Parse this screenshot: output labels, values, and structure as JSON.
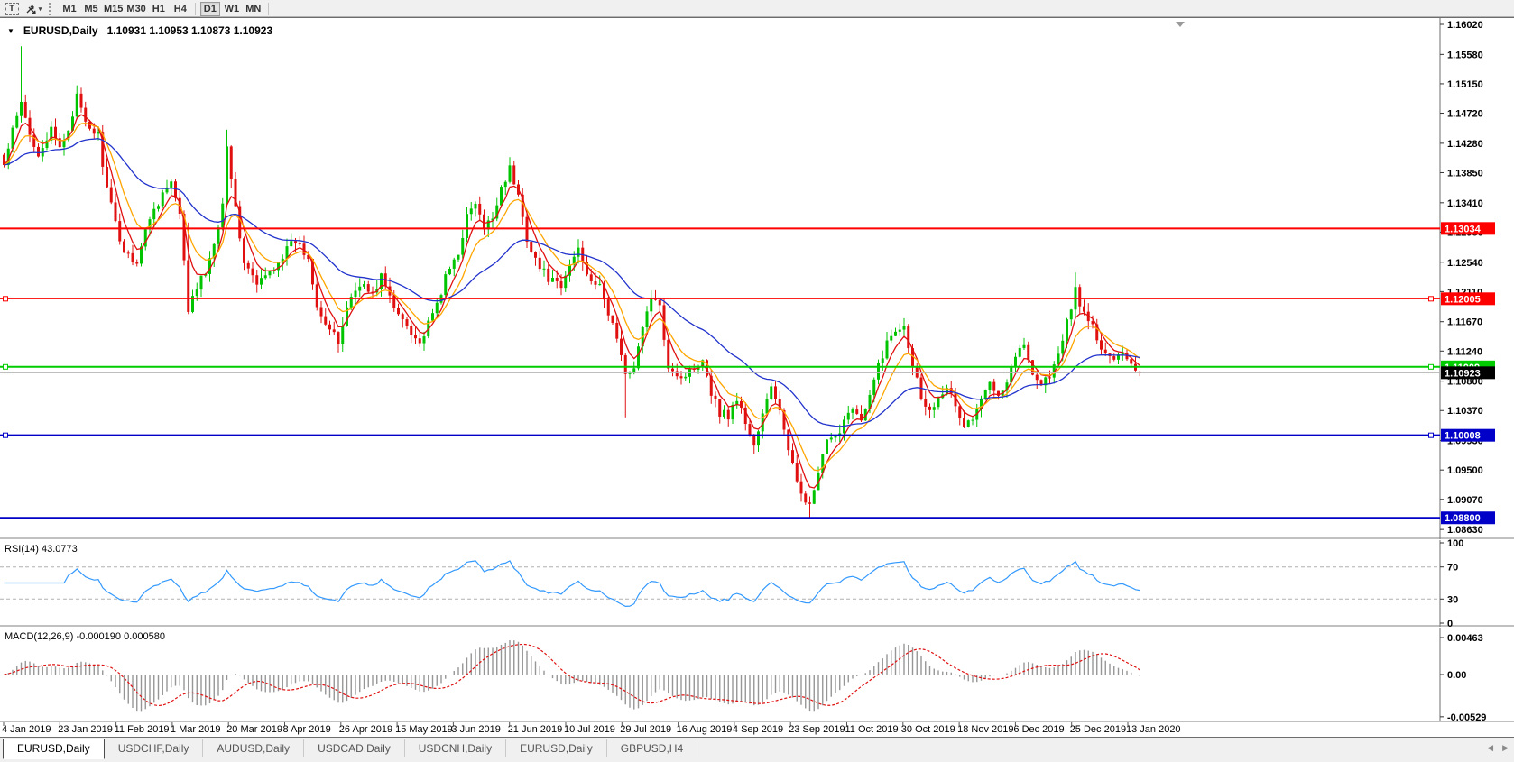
{
  "toolbar": {
    "text_tool_label": "T",
    "arrows_tool": "arrows-dropdown",
    "timeframes": [
      "M1",
      "M5",
      "M15",
      "M30",
      "H1",
      "H4",
      "D1",
      "W1",
      "MN"
    ],
    "active_timeframe": "D1"
  },
  "header": {
    "dropdown_glyph": "▼",
    "symbol": "EURUSD,Daily",
    "quotes": "1.10931 1.10953 1.10873 1.10923"
  },
  "chart_data": {
    "type": "candlestick",
    "symbol": "EURUSD",
    "timeframe": "Daily",
    "title": "EURUSD,Daily",
    "last_bar": {
      "open": 1.10931,
      "high": 1.10953,
      "low": 1.10873,
      "close": 1.10923
    },
    "bars_total": 266,
    "ylim": [
      1.08513,
      1.16099
    ],
    "price_ticks": [
      "1.16020",
      "1.15580",
      "1.15150",
      "1.14720",
      "1.14280",
      "1.13850",
      "1.13410",
      "1.12980",
      "1.12540",
      "1.12110",
      "1.11670",
      "1.11240",
      "1.10800",
      "1.10370",
      "1.09930",
      "1.09500",
      "1.09070",
      "1.08630"
    ],
    "price_anchors": [
      [
        0,
        1.1395
      ],
      [
        2,
        1.1445
      ],
      [
        4,
        1.1485
      ],
      [
        6,
        1.144
      ],
      [
        8,
        1.1415
      ],
      [
        11,
        1.1445
      ],
      [
        13,
        1.142
      ],
      [
        15,
        1.145
      ],
      [
        17,
        1.1495
      ],
      [
        19,
        1.1455
      ],
      [
        22,
        1.144
      ],
      [
        24,
        1.136
      ],
      [
        26,
        1.131
      ],
      [
        28,
        1.127
      ],
      [
        31,
        1.1255
      ],
      [
        34,
        1.132
      ],
      [
        37,
        1.1355
      ],
      [
        39,
        1.137
      ],
      [
        41,
        1.132
      ],
      [
        43,
        1.1185
      ],
      [
        45,
        1.1215
      ],
      [
        48,
        1.1255
      ],
      [
        51,
        1.134
      ],
      [
        52,
        1.143
      ],
      [
        54,
        1.133
      ],
      [
        56,
        1.1255
      ],
      [
        59,
        1.122
      ],
      [
        62,
        1.124
      ],
      [
        65,
        1.1265
      ],
      [
        68,
        1.1285
      ],
      [
        71,
        1.126
      ],
      [
        73,
        1.1195
      ],
      [
        75,
        1.1165
      ],
      [
        78,
        1.1135
      ],
      [
        80,
        1.119
      ],
      [
        83,
        1.1225
      ],
      [
        86,
        1.1205
      ],
      [
        88,
        1.1235
      ],
      [
        91,
        1.1185
      ],
      [
        94,
        1.1165
      ],
      [
        97,
        1.1135
      ],
      [
        100,
        1.1175
      ],
      [
        103,
        1.123
      ],
      [
        106,
        1.127
      ],
      [
        108,
        1.132
      ],
      [
        110,
        1.134
      ],
      [
        112,
        1.13
      ],
      [
        114,
        1.132
      ],
      [
        116,
        1.1365
      ],
      [
        118,
        1.139
      ],
      [
        120,
        1.135
      ],
      [
        122,
        1.129
      ],
      [
        125,
        1.1245
      ],
      [
        128,
        1.1225
      ],
      [
        130,
        1.1215
      ],
      [
        132,
        1.125
      ],
      [
        134,
        1.1275
      ],
      [
        136,
        1.124
      ],
      [
        139,
        1.1215
      ],
      [
        141,
        1.118
      ],
      [
        143,
        1.1145
      ],
      [
        145,
        1.1085
      ],
      [
        147,
        1.1105
      ],
      [
        149,
        1.1155
      ],
      [
        151,
        1.1205
      ],
      [
        153,
        1.1185
      ],
      [
        155,
        1.1105
      ],
      [
        158,
        1.1085
      ],
      [
        161,
        1.11
      ],
      [
        163,
        1.1115
      ],
      [
        165,
        1.1065
      ],
      [
        167,
        1.1035
      ],
      [
        169,
        1.103
      ],
      [
        171,
        1.1055
      ],
      [
        173,
        1.102
      ],
      [
        175,
        1.0985
      ],
      [
        177,
        1.103
      ],
      [
        179,
        1.107
      ],
      [
        181,
        1.104
      ],
      [
        183,
        1.0975
      ],
      [
        185,
        1.0935
      ],
      [
        188,
        1.0895
      ],
      [
        190,
        1.0945
      ],
      [
        192,
        1.099
      ],
      [
        194,
        1.0995
      ],
      [
        196,
        1.1025
      ],
      [
        198,
        1.1045
      ],
      [
        200,
        1.102
      ],
      [
        202,
        1.1055
      ],
      [
        204,
        1.1105
      ],
      [
        206,
        1.1135
      ],
      [
        208,
        1.1155
      ],
      [
        210,
        1.1165
      ],
      [
        212,
        1.1105
      ],
      [
        214,
        1.106
      ],
      [
        216,
        1.1035
      ],
      [
        218,
        1.106
      ],
      [
        220,
        1.1075
      ],
      [
        222,
        1.104
      ],
      [
        224,
        1.1015
      ],
      [
        226,
        1.1025
      ],
      [
        228,
        1.105
      ],
      [
        230,
        1.108
      ],
      [
        232,
        1.1065
      ],
      [
        234,
        1.108
      ],
      [
        236,
        1.112
      ],
      [
        238,
        1.113
      ],
      [
        240,
        1.1095
      ],
      [
        242,
        1.1075
      ],
      [
        244,
        1.109
      ],
      [
        246,
        1.1115
      ],
      [
        248,
        1.1165
      ],
      [
        250,
        1.1215
      ],
      [
        252,
        1.1175
      ],
      [
        254,
        1.116
      ],
      [
        256,
        1.1125
      ],
      [
        258,
        1.111
      ],
      [
        260,
        1.1125
      ],
      [
        262,
        1.1115
      ],
      [
        265,
        1.10923
      ]
    ],
    "spikes": [
      {
        "i": 4,
        "high": 1.157
      },
      {
        "i": 43,
        "high": 1.1312
      },
      {
        "i": 52,
        "high": 1.1448
      },
      {
        "i": 145,
        "low": 1.1027
      },
      {
        "i": 188,
        "low": 1.0879
      },
      {
        "i": 250,
        "high": 1.1239
      }
    ],
    "candle_up_color": "#00C400",
    "candle_down_color": "#E01010",
    "overlays": [
      {
        "type": "ema",
        "period": 5,
        "color": "#E01010"
      },
      {
        "type": "ema",
        "period": 10,
        "color": "#FFA500"
      },
      {
        "type": "ema",
        "period": 34,
        "color": "#2233CC"
      }
    ],
    "hlines": [
      {
        "price": 1.13034,
        "label": "1.13034",
        "color": "#FF0000",
        "width": 2,
        "handles": []
      },
      {
        "price": 1.12005,
        "label": "1.12005",
        "color": "#FF0000",
        "width": 1,
        "handles": [
          "left",
          "right"
        ]
      },
      {
        "price": 1.11009,
        "label": "1.11009",
        "color": "#00CC00",
        "width": 2,
        "handles": [
          "left",
          "right"
        ]
      },
      {
        "price": 1.10008,
        "label": "1.10008",
        "color": "#0000C8",
        "width": 2,
        "handles": [
          "left",
          "right"
        ]
      },
      {
        "price": 1.088,
        "label": "1.08800",
        "color": "#0000C8",
        "width": 2,
        "handles": []
      }
    ],
    "current_price": {
      "value": 1.10923,
      "label": "1.10923",
      "line_color": "#b4b4b4",
      "label_bg": "#000000"
    },
    "rsi": {
      "period": 14,
      "label": "RSI(14) 43.0773",
      "last": 43.0773,
      "levels": [
        70,
        30
      ],
      "axis_ticks": [
        100,
        70,
        30,
        0
      ],
      "color": "#3399FF"
    },
    "macd": {
      "fast": 12,
      "slow": 26,
      "signal": 9,
      "label": "MACD(12,26,9) -0.000190 0.000580",
      "last_macd": -0.00019,
      "last_signal": 0.00058,
      "axis_ticks": [
        {
          "v": 0.00463,
          "t": "0.00463"
        },
        {
          "v": 0,
          "t": "0.00"
        },
        {
          "v": -0.00529,
          "t": "-0.00529"
        }
      ],
      "hist_color": "#969696",
      "signal_color": "#E01010"
    },
    "dates": [
      "4 Jan 2019",
      "23 Jan 2019",
      "11 Feb 2019",
      "1 Mar 2019",
      "20 Mar 2019",
      "8 Apr 2019",
      "26 Apr 2019",
      "15 May 2019",
      "3 Jun 2019",
      "21 Jun 2019",
      "10 Jul 2019",
      "29 Jul 2019",
      "16 Aug 2019",
      "4 Sep 2019",
      "23 Sep 2019",
      "11 Oct 2019",
      "30 Oct 2019",
      "18 Nov 2019",
      "6 Dec 2019",
      "25 Dec 2019",
      "13 Jan 2020"
    ]
  },
  "tabs": {
    "items": [
      {
        "label": "EURUSD,Daily",
        "active": true
      },
      {
        "label": "USDCHF,Daily",
        "active": false
      },
      {
        "label": "AUDUSD,Daily",
        "active": false
      },
      {
        "label": "USDCAD,Daily",
        "active": false
      },
      {
        "label": "USDCNH,Daily",
        "active": false
      },
      {
        "label": "EURUSD,Daily",
        "active": false
      },
      {
        "label": "GBPUSD,H4",
        "active": false
      }
    ],
    "scroll_left": "◀",
    "scroll_right": "▶"
  }
}
